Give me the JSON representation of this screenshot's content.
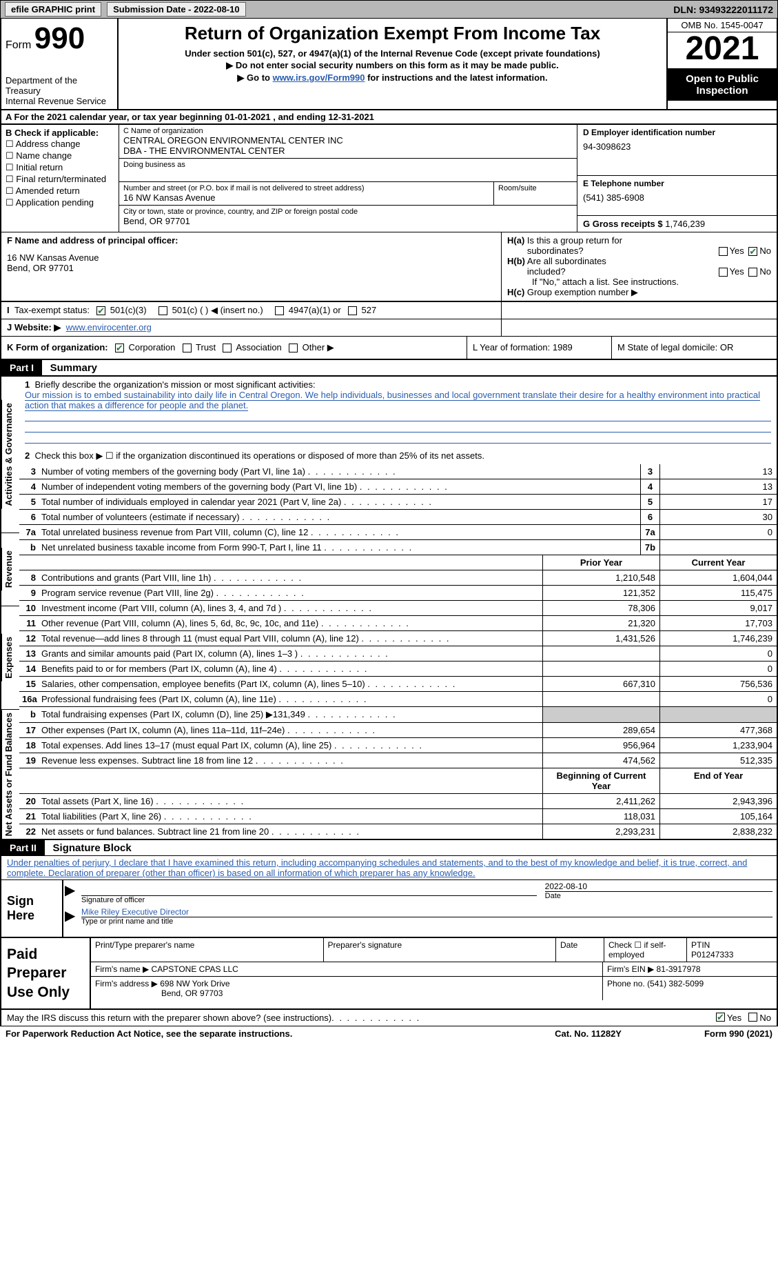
{
  "topbar": {
    "efile": "efile GRAPHIC print",
    "sub_label": "Submission Date - 2022-08-10",
    "dln": "DLN: 93493222011172"
  },
  "header": {
    "form_prefix": "Form",
    "form_no": "990",
    "dept": "Department of the Treasury",
    "irs": "Internal Revenue Service",
    "title": "Return of Organization Exempt From Income Tax",
    "sub1": "Under section 501(c), 527, or 4947(a)(1) of the Internal Revenue Code (except private foundations)",
    "sub2": "▶ Do not enter social security numbers on this form as it may be made public.",
    "sub3_pre": "▶ Go to ",
    "sub3_link": "www.irs.gov/Form990",
    "sub3_post": " for instructions and the latest information.",
    "omb": "OMB No. 1545-0047",
    "year": "2021",
    "inspect": "Open to Public Inspection"
  },
  "row_a": "A For the 2021 calendar year, or tax year beginning 01-01-2021   , and ending 12-31-2021",
  "col_b": {
    "label": "B Check if applicable:",
    "items": [
      "Address change",
      "Name change",
      "Initial return",
      "Final return/terminated",
      "Amended return",
      "Application pending"
    ]
  },
  "col_c": {
    "name_label": "C Name of organization",
    "name1": "CENTRAL OREGON ENVIRONMENTAL CENTER INC",
    "name2": "DBA - THE ENVIRONMENTAL CENTER",
    "dba": "Doing business as",
    "addr_label": "Number and street (or P.O. box if mail is not delivered to street address)",
    "addr": "16 NW Kansas Avenue",
    "room": "Room/suite",
    "city_label": "City or town, state or province, country, and ZIP or foreign postal code",
    "city": "Bend, OR  97701"
  },
  "col_d": {
    "ein_label": "D Employer identification number",
    "ein": "94-3098623",
    "tel_label": "E Telephone number",
    "tel": "(541) 385-6908",
    "gross_label": "G Gross receipts $",
    "gross": "1,746,239"
  },
  "row_f": {
    "label": "F Name and address of principal officer:",
    "addr1": "16 NW Kansas Avenue",
    "addr2": "Bend, OR  97701"
  },
  "row_h": {
    "ha": "H(a)  Is this a group return for subordinates?",
    "hb": "H(b)  Are all subordinates included?",
    "hb_note": "If \"No,\" attach a list. See instructions.",
    "hc": "H(c)  Group exemption number ▶",
    "yes": "Yes",
    "no": "No"
  },
  "row_i": {
    "label": "I  Tax-exempt status:",
    "o1": "501(c)(3)",
    "o2": "501(c) (   ) ◀ (insert no.)",
    "o3": "4947(a)(1) or",
    "o4": "527"
  },
  "row_j": {
    "label": "J  Website: ▶",
    "url": "www.envirocenter.org"
  },
  "row_k": {
    "label": "K Form of organization:",
    "corp": "Corporation",
    "trust": "Trust",
    "assoc": "Association",
    "other": "Other ▶",
    "l": "L Year of formation: 1989",
    "m": "M State of legal domicile: OR"
  },
  "part1": {
    "hdr": "Part I",
    "title": "Summary",
    "q1_label": "1",
    "q1_text": "Briefly describe the organization's mission or most significant activities:",
    "q1_val": "Our mission is to embed sustainability into daily life in Central Oregon. We help individuals, businesses and local government translate their desire for a healthy environment into practical action that makes a difference for people and the planet.",
    "q2_text": "Check this box ▶ ☐ if the organization discontinued its operations or disposed of more than 25% of its net assets.",
    "vlabels": [
      "Activities & Governance",
      "Revenue",
      "Expenses",
      "Net Assets or Fund Balances"
    ],
    "gov_lines": [
      {
        "n": "2",
        "t": "",
        "spacer": true
      },
      {
        "n": "3",
        "t": "Number of voting members of the governing body (Part VI, line 1a)",
        "box": "3",
        "v": "13"
      },
      {
        "n": "4",
        "t": "Number of independent voting members of the governing body (Part VI, line 1b)",
        "box": "4",
        "v": "13"
      },
      {
        "n": "5",
        "t": "Total number of individuals employed in calendar year 2021 (Part V, line 2a)",
        "box": "5",
        "v": "17"
      },
      {
        "n": "6",
        "t": "Total number of volunteers (estimate if necessary)",
        "box": "6",
        "v": "30"
      },
      {
        "n": "7a",
        "t": "Total unrelated business revenue from Part VIII, column (C), line 12",
        "box": "7a",
        "v": "0"
      },
      {
        "n": "b",
        "t": "Net unrelated business taxable income from Form 990-T, Part I, line 11",
        "box": "7b",
        "v": ""
      }
    ],
    "col_hdr_prior": "Prior Year",
    "col_hdr_curr": "Current Year",
    "rev_lines": [
      {
        "n": "8",
        "t": "Contributions and grants (Part VIII, line 1h)",
        "p": "1,210,548",
        "c": "1,604,044"
      },
      {
        "n": "9",
        "t": "Program service revenue (Part VIII, line 2g)",
        "p": "121,352",
        "c": "115,475"
      },
      {
        "n": "10",
        "t": "Investment income (Part VIII, column (A), lines 3, 4, and 7d )",
        "p": "78,306",
        "c": "9,017"
      },
      {
        "n": "11",
        "t": "Other revenue (Part VIII, column (A), lines 5, 6d, 8c, 9c, 10c, and 11e)",
        "p": "21,320",
        "c": "17,703"
      },
      {
        "n": "12",
        "t": "Total revenue—add lines 8 through 11 (must equal Part VIII, column (A), line 12)",
        "p": "1,431,526",
        "c": "1,746,239"
      }
    ],
    "exp_lines": [
      {
        "n": "13",
        "t": "Grants and similar amounts paid (Part IX, column (A), lines 1–3 )",
        "p": "",
        "c": "0"
      },
      {
        "n": "14",
        "t": "Benefits paid to or for members (Part IX, column (A), line 4)",
        "p": "",
        "c": "0"
      },
      {
        "n": "15",
        "t": "Salaries, other compensation, employee benefits (Part IX, column (A), lines 5–10)",
        "p": "667,310",
        "c": "756,536"
      },
      {
        "n": "16a",
        "t": "Professional fundraising fees (Part IX, column (A), line 11e)",
        "p": "",
        "c": "0"
      },
      {
        "n": "b",
        "t": "Total fundraising expenses (Part IX, column (D), line 25) ▶131,349",
        "p": "grey",
        "c": "grey"
      },
      {
        "n": "17",
        "t": "Other expenses (Part IX, column (A), lines 11a–11d, 11f–24e)",
        "p": "289,654",
        "c": "477,368"
      },
      {
        "n": "18",
        "t": "Total expenses. Add lines 13–17 (must equal Part IX, column (A), line 25)",
        "p": "956,964",
        "c": "1,233,904"
      },
      {
        "n": "19",
        "t": "Revenue less expenses. Subtract line 18 from line 12",
        "p": "474,562",
        "c": "512,335"
      }
    ],
    "na_hdr_beg": "Beginning of Current Year",
    "na_hdr_end": "End of Year",
    "na_lines": [
      {
        "n": "20",
        "t": "Total assets (Part X, line 16)",
        "p": "2,411,262",
        "c": "2,943,396"
      },
      {
        "n": "21",
        "t": "Total liabilities (Part X, line 26)",
        "p": "118,031",
        "c": "105,164"
      },
      {
        "n": "22",
        "t": "Net assets or fund balances. Subtract line 21 from line 20",
        "p": "2,293,231",
        "c": "2,838,232"
      }
    ]
  },
  "part2": {
    "hdr": "Part II",
    "title": "Signature Block",
    "decl": "Under penalties of perjury, I declare that I have examined this return, including accompanying schedules and statements, and to the best of my knowledge and belief, it is true, correct, and complete. Declaration of preparer (other than officer) is based on all information of which preparer has any knowledge."
  },
  "sign": {
    "here": "Sign Here",
    "sig_label": "Signature of officer",
    "date_label": "Date",
    "date": "2022-08-10",
    "name": "Mike Riley  Executive Director",
    "name_label": "Type or print name and title"
  },
  "prep": {
    "label": "Paid Preparer Use Only",
    "c1": "Print/Type preparer's name",
    "c2": "Preparer's signature",
    "c3": "Date",
    "c4_pre": "Check ☐ if self-employed",
    "c5_label": "PTIN",
    "c5": "P01247333",
    "firm_label": "Firm's name    ▶",
    "firm": "CAPSTONE CPAS LLC",
    "ein_label": "Firm's EIN ▶",
    "ein": "81-3917978",
    "addr_label": "Firm's address ▶",
    "addr1": "698 NW York Drive",
    "addr2": "Bend, OR  97703",
    "phone_label": "Phone no.",
    "phone": "(541) 382-5099"
  },
  "footer": {
    "discuss": "May the IRS discuss this return with the preparer shown above? (see instructions)",
    "yes": "Yes",
    "no": "No",
    "pra": "For Paperwork Reduction Act Notice, see the separate instructions.",
    "cat": "Cat. No. 11282Y",
    "form": "Form 990 (2021)"
  }
}
